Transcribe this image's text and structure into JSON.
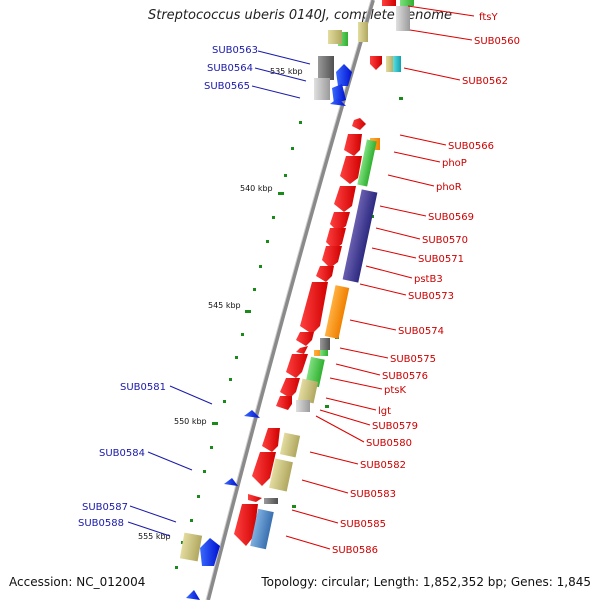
{
  "title": "Streptococcus uberis 0140J, complete genome",
  "footer": {
    "accession": "Accession: NC_012004",
    "topology": "Topology: circular; Length: 1,852,352 bp; Genes: 1,845"
  },
  "scale_ticks": [
    "535 kbp",
    "540 kbp",
    "545 kbp",
    "550 kbp",
    "555 kbp"
  ],
  "left_genes": [
    "SUB0563",
    "SUB0564",
    "SUB0565",
    "SUB0581",
    "SUB0584",
    "SUB0587",
    "SUB0588"
  ],
  "right_genes": [
    "ftsY",
    "SUB0560",
    "SUB0562",
    "SUB0566",
    "phoP",
    "phoR",
    "SUB0569",
    "SUB0570",
    "SUB0571",
    "pstB3",
    "SUB0573",
    "SUB0574",
    "SUB0575",
    "SUB0576",
    "ptsK",
    "lgt",
    "SUB0579",
    "SUB0580",
    "SUB0582",
    "SUB0583",
    "SUB0585",
    "SUB0586"
  ],
  "colors": {
    "forward_label": "#cc0000",
    "reverse_label": "#1a1aaa",
    "backbone": "#8a8a8a",
    "tick": "#1a7a1a"
  }
}
